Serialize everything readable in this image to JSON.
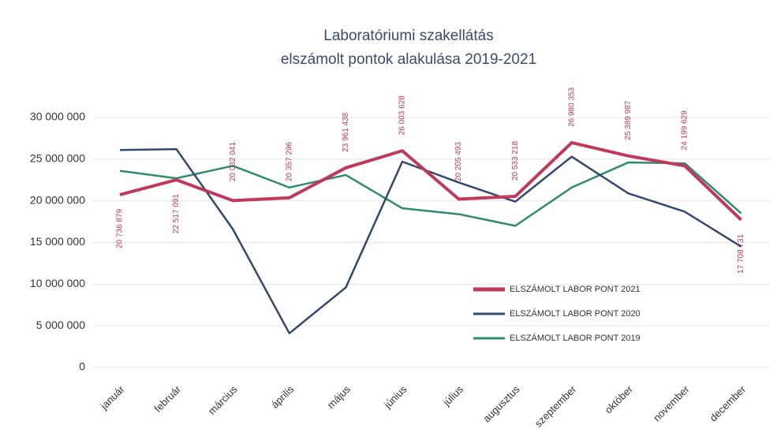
{
  "chart_data": {
    "type": "line",
    "title": [
      "Laboratóriumi szakellátás",
      "elszámolt pontok alakulása 2019-2021"
    ],
    "categories": [
      "január",
      "február",
      "március",
      "április",
      "május",
      "június",
      "július",
      "augusztus",
      "szeptember",
      "október",
      "november",
      "december"
    ],
    "series": [
      {
        "name": "ELSZÁMOLT LABOR PONT 2021",
        "color": "#c0395a",
        "values": [
          20736879,
          22517091,
          20032041,
          20357296,
          23961438,
          26003628,
          20205493,
          20533218,
          26980353,
          25389987,
          24199629,
          17708731
        ],
        "value_labels": [
          "20 736 879",
          "22 517 091",
          "20 032 041",
          "20 357 296",
          "23 961 438",
          "26 003 628",
          "20 205 493",
          "20 533 218",
          "26 980 353",
          "25 389 987",
          "24 199 629",
          "17 708 731"
        ]
      },
      {
        "name": "ELSZÁMOLT LABOR PONT 2020",
        "color": "#34496e",
        "values": [
          26100000,
          26200000,
          16600000,
          4100000,
          9600000,
          24700000,
          22200000,
          19900000,
          25300000,
          20900000,
          18700000,
          14500000
        ]
      },
      {
        "name": "ELSZÁMOLT LABOR PONT 2019",
        "color": "#2e8b6e",
        "values": [
          23600000,
          22700000,
          24200000,
          21600000,
          23100000,
          19100000,
          18400000,
          17000000,
          21600000,
          24600000,
          24500000,
          18500000
        ]
      }
    ],
    "ylim": [
      0,
      30000000
    ],
    "yticks": [
      {
        "value": 0,
        "label": "0"
      },
      {
        "value": 5000000,
        "label": "5 000 000"
      },
      {
        "value": 10000000,
        "label": "10 000 000"
      },
      {
        "value": 15000000,
        "label": "15 000 000"
      },
      {
        "value": 20000000,
        "label": "20 000 000"
      },
      {
        "value": 25000000,
        "label": "25 000 000"
      },
      {
        "value": 30000000,
        "label": "30 000 000"
      }
    ],
    "grid": true,
    "legend": "right"
  }
}
